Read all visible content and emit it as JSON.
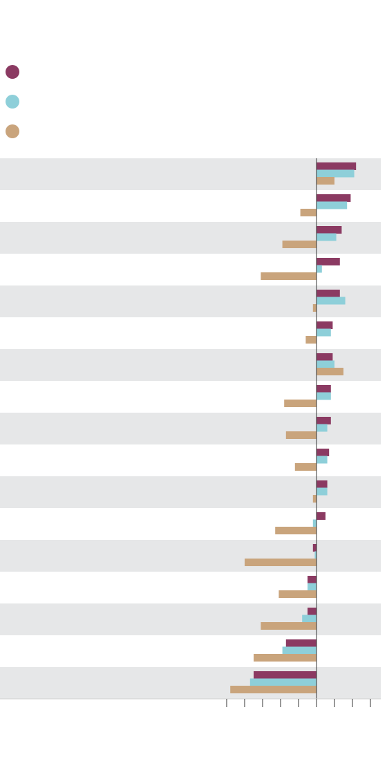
{
  "chart_data": {
    "type": "barh",
    "categories": [
      null,
      null,
      null,
      null,
      null,
      null,
      null,
      null,
      null,
      null,
      null,
      null,
      null,
      null,
      null,
      null,
      null
    ],
    "series": [
      {
        "color": "#8b3a62",
        "values": [
          2.2,
          1.9,
          1.4,
          1.3,
          1.3,
          0.9,
          0.9,
          0.8,
          0.8,
          0.7,
          0.6,
          0.5,
          -0.2,
          -0.5,
          -0.5,
          -1.7,
          -3.5
        ]
      },
      {
        "color": "#8ecfd9",
        "values": [
          2.1,
          1.7,
          1.1,
          0.3,
          1.6,
          0.8,
          1.0,
          0.8,
          0.6,
          0.6,
          0.6,
          -0.2,
          -0.1,
          -0.5,
          -0.8,
          -1.9,
          -3.7
        ]
      },
      {
        "color": "#c9a47c",
        "values": [
          1.0,
          -0.9,
          -1.9,
          -3.1,
          -0.2,
          -0.6,
          1.5,
          -1.8,
          -1.7,
          -1.2,
          -0.2,
          -2.3,
          -4.0,
          -2.1,
          -3.1,
          -3.5,
          -4.8
        ]
      }
    ],
    "xlim": [
      -5,
      3.6
    ],
    "xticks": [
      -5,
      -4,
      -3,
      -2,
      -1,
      0,
      1,
      2,
      3
    ],
    "band_fill": "#e6e7e8"
  }
}
